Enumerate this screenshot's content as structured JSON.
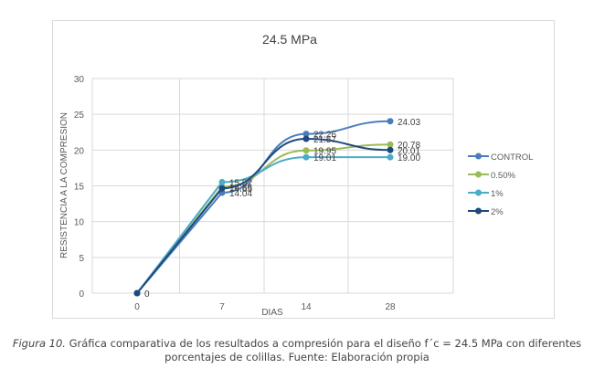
{
  "chart_data": {
    "type": "line",
    "title": "24.5 MPa",
    "xlabel": "DIAS",
    "ylabel": "RESISTENCIA A LA COMPRESION",
    "categories": [
      "0",
      "7",
      "14",
      "28"
    ],
    "ylim": [
      0,
      30
    ],
    "yticks": [
      0,
      5,
      10,
      15,
      20,
      25,
      30
    ],
    "grid": true,
    "legend_position": "right",
    "series": [
      {
        "name": "CONTROL",
        "color": "#4a7ebb",
        "values": [
          0,
          14.04,
          22.26,
          24.03
        ],
        "labels": [
          "",
          "14.04",
          "22.26",
          "24.03"
        ]
      },
      {
        "name": "0.50%",
        "color": "#9bbb59",
        "values": [
          0,
          14.86,
          19.95,
          20.78
        ],
        "labels": [
          "",
          "14.86",
          "19.95",
          "20.78"
        ]
      },
      {
        "name": "1%",
        "color": "#4bacc6",
        "values": [
          0,
          15.52,
          19.01,
          19.0
        ],
        "labels": [
          "",
          "15.52",
          "19.01",
          "19.00"
        ]
      },
      {
        "name": "2%",
        "color": "#1f497d",
        "values": [
          0,
          14.65,
          21.57,
          20.01
        ],
        "labels": [
          "0",
          "14.65",
          "21.57",
          "20.01"
        ]
      }
    ]
  },
  "caption": {
    "figure_label": "Figura 10.",
    "text": " Gráfica comparativa de los resultados a compresión para el diseño f´c = 24.5 MPa con diferentes",
    "line2": "porcentajes de colillas. Fuente: Elaboración propia"
  }
}
